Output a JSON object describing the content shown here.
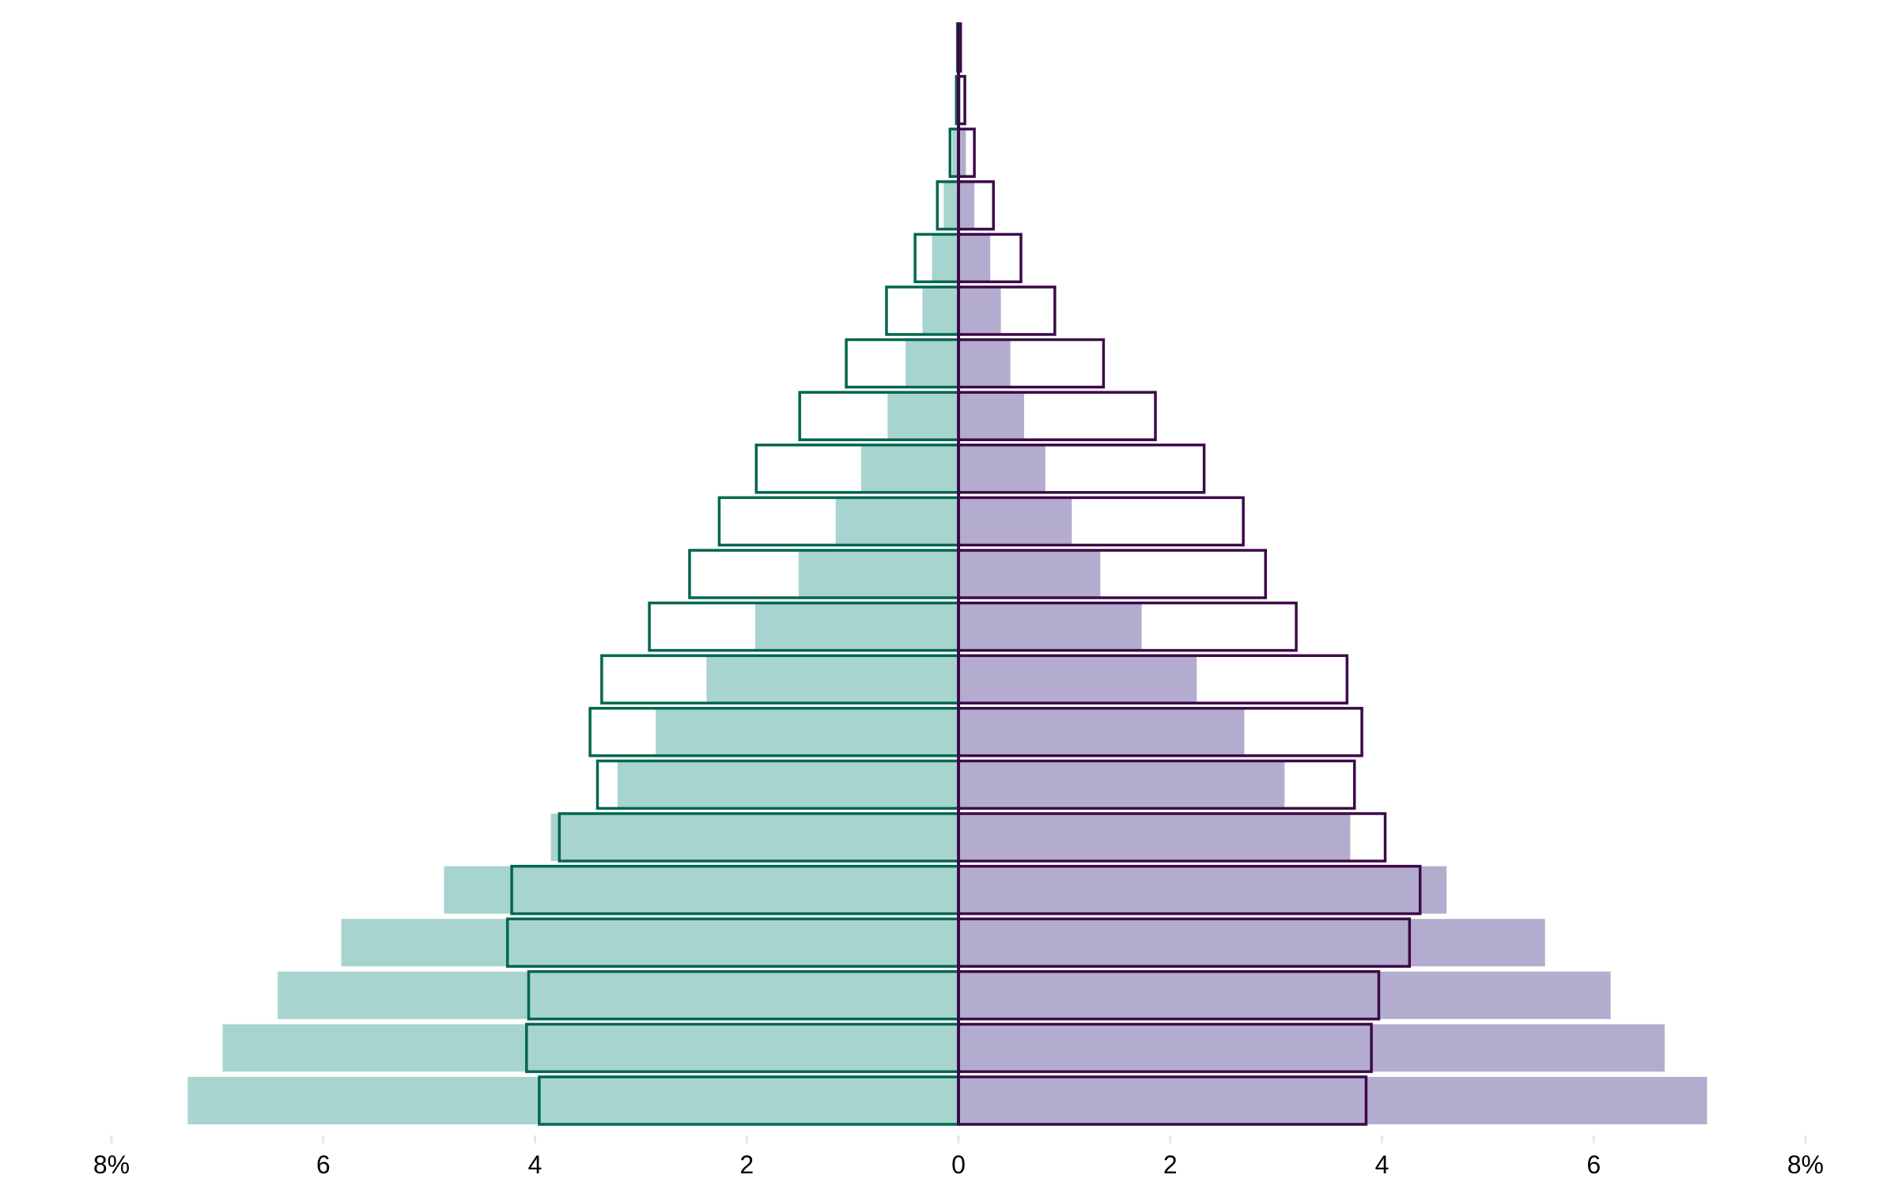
{
  "chart_data": {
    "type": "bar",
    "orientation": "horizontal",
    "subtype": "population-pyramid",
    "title": "",
    "xlabel": "",
    "ylabel": "",
    "xlim": [
      -8,
      8
    ],
    "x_ticks": [
      -8,
      -6,
      -4,
      -2,
      0,
      2,
      4,
      6,
      8
    ],
    "x_tick_labels": [
      "8%",
      "6",
      "4",
      "2",
      "0",
      "2",
      "4",
      "6",
      "8%"
    ],
    "grid": false,
    "legend": "none",
    "colors": {
      "left_fill": "#a7d4cf",
      "left_outline": "#00664f",
      "right_fill": "#b3acce",
      "right_outline": "#3c0a47"
    },
    "series": [
      {
        "side": "left",
        "style": "filled",
        "values": [
          7.28,
          6.95,
          6.43,
          5.83,
          4.86,
          3.85,
          3.22,
          2.86,
          2.38,
          1.92,
          1.51,
          1.16,
          0.92,
          0.67,
          0.5,
          0.34,
          0.25,
          0.14,
          0.06,
          0.02,
          0.01
        ]
      },
      {
        "side": "left",
        "style": "outline",
        "values": [
          3.96,
          4.08,
          4.06,
          4.26,
          4.22,
          3.77,
          3.41,
          3.48,
          3.37,
          2.92,
          2.54,
          2.26,
          1.91,
          1.5,
          1.06,
          0.68,
          0.41,
          0.2,
          0.08,
          0.02,
          0.01
        ]
      },
      {
        "side": "right",
        "style": "filled",
        "values": [
          7.07,
          6.67,
          6.16,
          5.54,
          4.61,
          3.7,
          3.08,
          2.7,
          2.25,
          1.73,
          1.34,
          1.07,
          0.82,
          0.62,
          0.49,
          0.4,
          0.3,
          0.15,
          0.07,
          0.02,
          0.01
        ]
      },
      {
        "side": "right",
        "style": "outline",
        "values": [
          3.85,
          3.9,
          3.97,
          4.26,
          4.36,
          4.03,
          3.74,
          3.81,
          3.67,
          3.19,
          2.9,
          2.69,
          2.32,
          1.86,
          1.37,
          0.91,
          0.59,
          0.33,
          0.15,
          0.06,
          0.02
        ]
      }
    ]
  }
}
